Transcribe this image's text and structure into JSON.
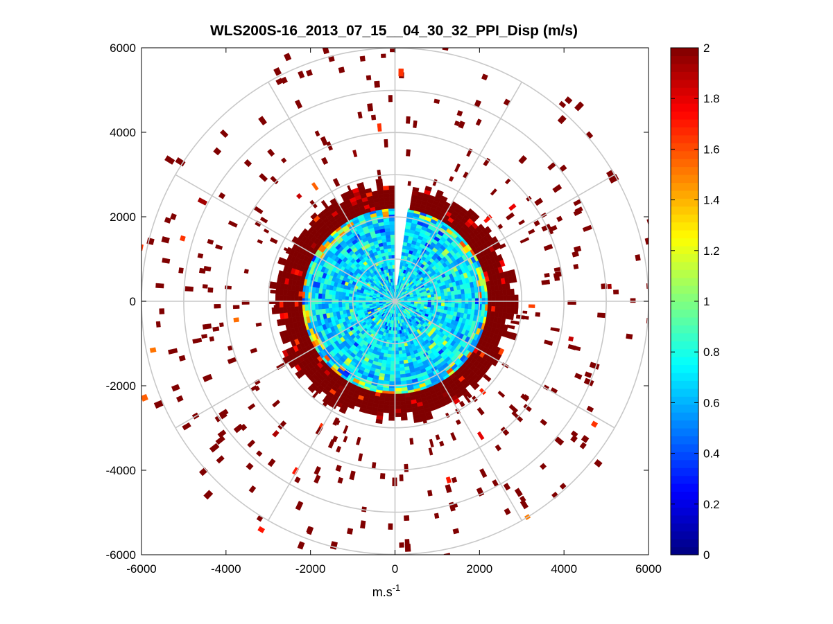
{
  "chart_data": {
    "type": "heatmap",
    "subtype": "polar-ppi",
    "title": "WLS200S-16_2013_07_15__04_30_32_PPI_Disp (m/s)",
    "xlabel": "m.s",
    "xlabel_superscript": "-1",
    "ylabel": "",
    "xlim": [
      -6000,
      6000
    ],
    "ylim": [
      -6000,
      6000
    ],
    "x_ticks": [
      "-6000",
      "-4000",
      "-2000",
      "0",
      "2000",
      "4000",
      "6000"
    ],
    "y_ticks": [
      "6000",
      "4000",
      "2000",
      "0",
      "-2000",
      "-4000",
      "-6000"
    ],
    "polar_grid": {
      "ring_radii": [
        1000,
        2000,
        3000,
        4000,
        5000,
        6000
      ],
      "spoke_angles_deg": [
        0,
        30,
        60,
        90,
        120,
        150,
        180,
        210,
        240,
        270,
        300,
        330
      ]
    },
    "colorbar": {
      "colormap": "jet",
      "clim": [
        0,
        2
      ],
      "ticks": [
        "0",
        "0.2",
        "0.4",
        "0.6",
        "0.8",
        "1",
        "1.2",
        "1.4",
        "1.6",
        "1.8",
        "2"
      ]
    },
    "data_description": {
      "inner_disk_radius": 2200,
      "inner_disk_values_range": [
        0.5,
        0.9
      ],
      "edge_ring_radius": [
        2200,
        2600
      ],
      "edge_ring_value": 2,
      "outer_sparse_value": 2,
      "gap_azimuth_deg": [
        0,
        8
      ]
    }
  },
  "colors": {
    "grid": "#c8c8c8",
    "saturated_outer": "#800000",
    "background": "#ffffff"
  }
}
